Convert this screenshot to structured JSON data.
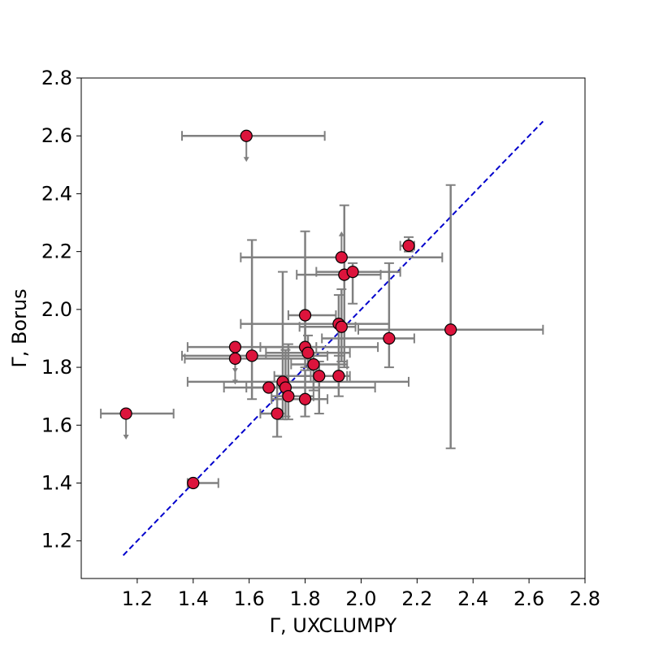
{
  "chart_data": {
    "type": "scatter",
    "title": "",
    "xlabel": "Γ, UXCLUMPY",
    "ylabel": "Γ, Borus",
    "xlim": [
      1.0,
      2.8
    ],
    "ylim": [
      1.07,
      2.8
    ],
    "x_ticks": [
      1.2,
      1.4,
      1.6,
      1.8,
      2.0,
      2.2,
      2.4,
      2.6,
      2.8
    ],
    "y_ticks": [
      1.2,
      1.4,
      1.6,
      1.8,
      2.0,
      2.2,
      2.4,
      2.6,
      2.8
    ],
    "x_tick_labels": [
      "1.2",
      "1.4",
      "1.6",
      "1.8",
      "2.0",
      "2.2",
      "2.4",
      "2.6",
      "2.8"
    ],
    "y_tick_labels": [
      "1.2",
      "1.4",
      "1.6",
      "1.8",
      "2.0",
      "2.2",
      "2.4",
      "2.6",
      "2.8"
    ],
    "grid": false,
    "legend": "none",
    "marker_color": "#dc143c",
    "marker_edge_color": "#000000",
    "errorbar_color": "#808080",
    "reference_line": {
      "style": "dashed",
      "color": "#0000cc",
      "x": [
        1.15,
        2.65
      ],
      "y": [
        1.15,
        2.65
      ]
    },
    "points": [
      {
        "x": 1.59,
        "y": 2.6,
        "xlo": 1.36,
        "xhi": 1.87,
        "upper_limit": true
      },
      {
        "x": 1.16,
        "y": 1.64,
        "xlo": 1.07,
        "xhi": 1.33,
        "upper_limit": true
      },
      {
        "x": 1.4,
        "y": 1.4,
        "xlo": 1.38,
        "xhi": 1.49
      },
      {
        "x": 1.55,
        "y": 1.87,
        "xlo": 1.38,
        "xhi": 1.84,
        "upper_limit": true
      },
      {
        "x": 1.55,
        "y": 1.83,
        "xlo": 1.37,
        "xhi": 1.82,
        "upper_limit": true
      },
      {
        "x": 1.61,
        "y": 1.84,
        "xlo": 1.36,
        "xhi": 1.88,
        "ylo": 1.69,
        "yhi": 2.24
      },
      {
        "x": 1.67,
        "y": 1.73,
        "xlo": 1.51,
        "xhi": 1.92
      },
      {
        "x": 1.7,
        "y": 1.64,
        "xlo": 1.64,
        "xhi": 1.73,
        "ylo": 1.56,
        "yhi": 1.75
      },
      {
        "x": 1.72,
        "y": 1.75,
        "xlo": 1.38,
        "xhi": 2.17,
        "ylo": 1.62,
        "yhi": 2.13
      },
      {
        "x": 1.73,
        "y": 1.73,
        "xlo": 1.59,
        "xhi": 2.05,
        "ylo": 1.63,
        "yhi": 1.86
      },
      {
        "x": 1.74,
        "y": 1.7,
        "xlo": 1.68,
        "xhi": 1.83,
        "ylo": 1.62,
        "yhi": 1.88
      },
      {
        "x": 1.8,
        "y": 1.98,
        "xlo": 1.74,
        "xhi": 1.91,
        "ylo": 1.87,
        "yhi": 2.27
      },
      {
        "x": 1.8,
        "y": 1.87,
        "xlo": 1.64,
        "xhi": 2.06,
        "ylo": 1.8,
        "yhi": 1.97
      },
      {
        "x": 1.8,
        "y": 1.69,
        "xlo": 1.68,
        "xhi": 1.88,
        "ylo": 1.63,
        "yhi": 1.79
      },
      {
        "x": 1.81,
        "y": 1.85,
        "xlo": 1.66,
        "xhi": 1.96,
        "ylo": 1.79,
        "yhi": 1.91
      },
      {
        "x": 1.83,
        "y": 1.81,
        "xlo": 1.75,
        "xhi": 1.95,
        "ylo": 1.72,
        "yhi": 1.85
      },
      {
        "x": 1.85,
        "y": 1.77,
        "xlo": 1.69,
        "xhi": 1.95,
        "ylo": 1.64,
        "yhi": 1.82
      },
      {
        "x": 1.92,
        "y": 1.95,
        "xlo": 1.57,
        "xhi": 2.1,
        "ylo": 1.77,
        "yhi": 2.05
      },
      {
        "x": 1.92,
        "y": 1.77,
        "xlo": 1.82,
        "xhi": 1.96,
        "ylo": 1.7,
        "yhi": 1.84
      },
      {
        "x": 1.93,
        "y": 1.94,
        "xlo": 1.78,
        "xhi": 1.98,
        "ylo": 1.82,
        "yhi": 2.07
      },
      {
        "x": 1.93,
        "y": 2.18,
        "xlo": 1.57,
        "xhi": 2.29,
        "lower_limit": true
      },
      {
        "x": 1.94,
        "y": 2.12,
        "xlo": 1.77,
        "xhi": 2.07,
        "ylo": 1.8,
        "yhi": 2.36
      },
      {
        "x": 1.97,
        "y": 2.13,
        "xlo": 1.84,
        "xhi": 2.14,
        "ylo": 2.02,
        "yhi": 2.16
      },
      {
        "x": 2.1,
        "y": 1.9,
        "xlo": 1.86,
        "xhi": 2.19,
        "ylo": 1.8,
        "yhi": 2.16
      },
      {
        "x": 2.17,
        "y": 2.22,
        "xlo": 2.14,
        "xhi": 2.19,
        "ylo": 2.2,
        "yhi": 2.25
      },
      {
        "x": 2.32,
        "y": 1.93,
        "xlo": 1.99,
        "xhi": 2.65,
        "ylo": 1.52,
        "yhi": 2.43
      }
    ]
  }
}
